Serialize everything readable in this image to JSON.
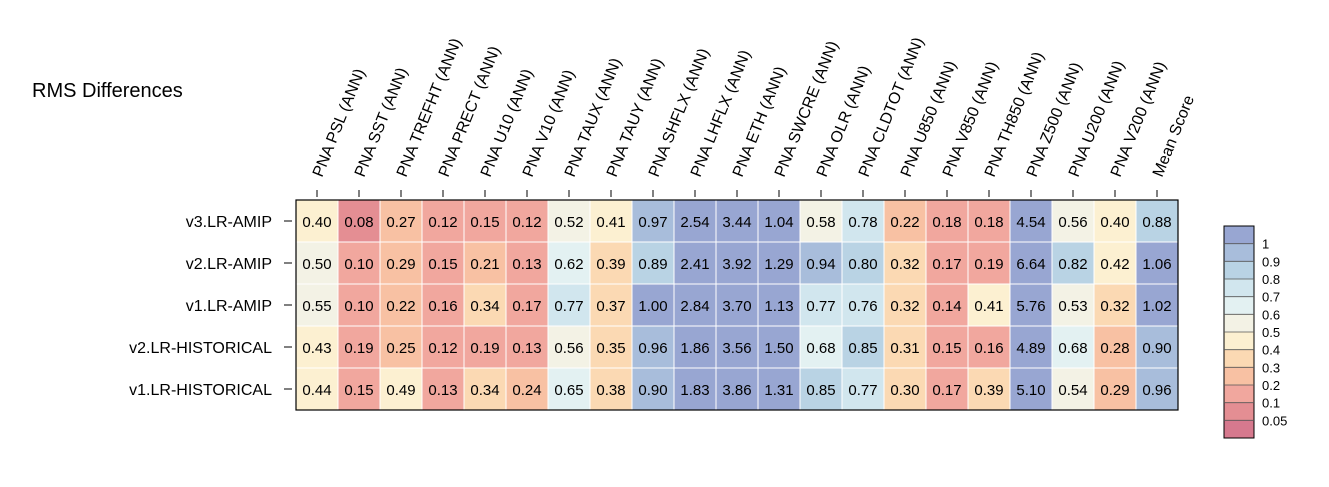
{
  "chart_data": {
    "type": "heatmap",
    "title": "RMS Differences",
    "columns": [
      "PNA PSL (ANN)",
      "PNA SST (ANN)",
      "PNA TREFHT (ANN)",
      "PNA PRECT (ANN)",
      "PNA U10 (ANN)",
      "PNA V10 (ANN)",
      "PNA TAUX (ANN)",
      "PNA TAUY (ANN)",
      "PNA SHFLX (ANN)",
      "PNA LHFLX (ANN)",
      "PNA ETH (ANN)",
      "PNA SWCRE (ANN)",
      "PNA OLR (ANN)",
      "PNA CLDTOT (ANN)",
      "PNA U850 (ANN)",
      "PNA V850 (ANN)",
      "PNA TH850 (ANN)",
      "PNA Z500 (ANN)",
      "PNA U200 (ANN)",
      "PNA V200 (ANN)",
      "Mean Score"
    ],
    "rows": [
      "v3.LR-AMIP",
      "v2.LR-AMIP",
      "v1.LR-AMIP",
      "v2.LR-HISTORICAL",
      "v1.LR-HISTORICAL"
    ],
    "values": [
      [
        0.4,
        0.08,
        0.27,
        0.12,
        0.15,
        0.12,
        0.52,
        0.41,
        0.97,
        2.54,
        3.44,
        1.04,
        0.58,
        0.78,
        0.22,
        0.18,
        0.18,
        4.54,
        0.56,
        0.4,
        0.88
      ],
      [
        0.5,
        0.1,
        0.29,
        0.15,
        0.21,
        0.13,
        0.62,
        0.39,
        0.89,
        2.41,
        3.92,
        1.29,
        0.94,
        0.8,
        0.32,
        0.17,
        0.19,
        6.64,
        0.82,
        0.42,
        1.06
      ],
      [
        0.55,
        0.1,
        0.22,
        0.16,
        0.34,
        0.17,
        0.77,
        0.37,
        1.0,
        2.84,
        3.7,
        1.13,
        0.77,
        0.76,
        0.32,
        0.14,
        0.41,
        5.76,
        0.53,
        0.32,
        1.02
      ],
      [
        0.43,
        0.19,
        0.25,
        0.12,
        0.19,
        0.13,
        0.56,
        0.35,
        0.96,
        1.86,
        3.56,
        1.5,
        0.68,
        0.85,
        0.31,
        0.15,
        0.16,
        4.89,
        0.68,
        0.28,
        0.9
      ],
      [
        0.44,
        0.15,
        0.49,
        0.13,
        0.34,
        0.24,
        0.65,
        0.38,
        0.9,
        1.83,
        3.86,
        1.31,
        0.85,
        0.77,
        0.3,
        0.17,
        0.39,
        5.1,
        0.54,
        0.29,
        0.96
      ]
    ],
    "legend": {
      "position": "right",
      "ticks": [
        "1",
        "0.9",
        "0.8",
        "0.7",
        "0.6",
        "0.5",
        "0.4",
        "0.3",
        "0.2",
        "0.1",
        "0.05"
      ],
      "bins": [
        {
          "min": 1.0,
          "color": "#98a6d2"
        },
        {
          "min": 0.9,
          "color": "#a8bddb"
        },
        {
          "min": 0.8,
          "color": "#b9d3e4"
        },
        {
          "min": 0.7,
          "color": "#d1e6ee"
        },
        {
          "min": 0.6,
          "color": "#e3f1f2"
        },
        {
          "min": 0.5,
          "color": "#f3f2e5"
        },
        {
          "min": 0.4,
          "color": "#fcf0d1"
        },
        {
          "min": 0.3,
          "color": "#fbd9b3"
        },
        {
          "min": 0.2,
          "color": "#f8c1a3"
        },
        {
          "min": 0.1,
          "color": "#f1a79e"
        },
        {
          "min": 0.05,
          "color": "#e48e93"
        },
        {
          "min": 0.0,
          "color": "#d6798e"
        }
      ]
    }
  }
}
